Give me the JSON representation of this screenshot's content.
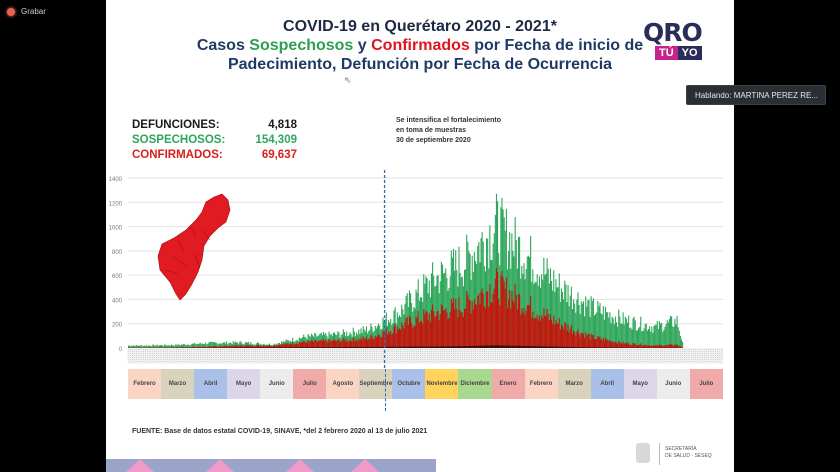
{
  "app": {
    "record_label": "Grabar",
    "speaker_label": "Hablando: MARTINA PEREZ RE..."
  },
  "slide": {
    "title_line1": "COVID-19 en Querétaro 2020 - 2021*",
    "title_line2_a": "Casos ",
    "title_line2_b": "Sospechosos",
    "title_line2_c": " y ",
    "title_line2_d": "Confirmados",
    "title_line2_e": " por Fecha de inicio de",
    "title_line3": "Padecimiento, Defunción por Fecha de Ocurrencia",
    "logo": {
      "main": "QRO",
      "tu": "TÚ",
      "yo": "YO"
    },
    "stats": [
      {
        "label": "DEFUNCIONES:",
        "value": "4,818",
        "color": "#1a1a1a"
      },
      {
        "label": "SOSPECHOSOS:",
        "value": "154,309",
        "color": "#2ea65a"
      },
      {
        "label": "CONFIRMADOS:",
        "value": "69,637",
        "color": "#d81e1e"
      }
    ],
    "annotation": [
      "Se intensifica el fortalecimiento",
      "en toma de muestras",
      "30 de septiembre 2020"
    ],
    "source": "FUENTE: Base de datos estatal COVID-19, SINAVE, *del 2 febrero 2020 al 13 de julio 2021",
    "secretaria": [
      "SECRETARÍA",
      "DE SALUD · SESEQ"
    ]
  },
  "chart_data": {
    "type": "bar",
    "stacked": false,
    "title": "COVID-19 en Querétaro 2020 - 2021*",
    "xlabel": "",
    "ylabel": "",
    "ylim": [
      0,
      1400
    ],
    "yticks": [
      0,
      200,
      400,
      600,
      800,
      1000,
      1200,
      1400
    ],
    "grid": true,
    "annotation_date": "30 de septiembre 2020",
    "months": [
      {
        "label": "Febrero",
        "color": "#fbd5c3"
      },
      {
        "label": "Marzo",
        "color": "#d9d3bd"
      },
      {
        "label": "Abril",
        "color": "#aac0e8"
      },
      {
        "label": "Mayo",
        "color": "#ddd6ea"
      },
      {
        "label": "Junio",
        "color": "#ececec"
      },
      {
        "label": "Julio",
        "color": "#f1aaaa"
      },
      {
        "label": "Agosto",
        "color": "#fbd5c3"
      },
      {
        "label": "Septiembre",
        "color": "#d9d3bd"
      },
      {
        "label": "Octubre",
        "color": "#aac0e8"
      },
      {
        "label": "Noviembre",
        "color": "#ffd35c"
      },
      {
        "label": "Diciembre",
        "color": "#a9d88f"
      },
      {
        "label": "Enero",
        "color": "#f1aaaa"
      },
      {
        "label": "Febrero",
        "color": "#fbd5c3"
      },
      {
        "label": "Marzo",
        "color": "#d9d3bd"
      },
      {
        "label": "Abril",
        "color": "#aac0e8"
      },
      {
        "label": "Mayo",
        "color": "#ddd6ea"
      },
      {
        "label": "Junio",
        "color": "#ececec"
      },
      {
        "label": "Julio",
        "color": "#f1aaaa"
      }
    ],
    "series": [
      {
        "name": "Sospechosos",
        "color": "#2ea65a",
        "monthly_level": [
          20,
          25,
          40,
          45,
          30,
          90,
          110,
          150,
          300,
          550,
          700,
          1000,
          750,
          500,
          330,
          230,
          170,
          250
        ]
      },
      {
        "name": "Confirmados",
        "color": "#c0180e",
        "monthly_level": [
          3,
          5,
          10,
          20,
          20,
          50,
          60,
          80,
          180,
          280,
          350,
          520,
          350,
          200,
          90,
          40,
          20,
          30
        ]
      },
      {
        "name": "Defunciones",
        "color": "#3a0a0a",
        "monthly_level": [
          0,
          1,
          2,
          4,
          5,
          6,
          7,
          8,
          10,
          12,
          15,
          22,
          16,
          10,
          5,
          3,
          2,
          2
        ]
      }
    ]
  }
}
